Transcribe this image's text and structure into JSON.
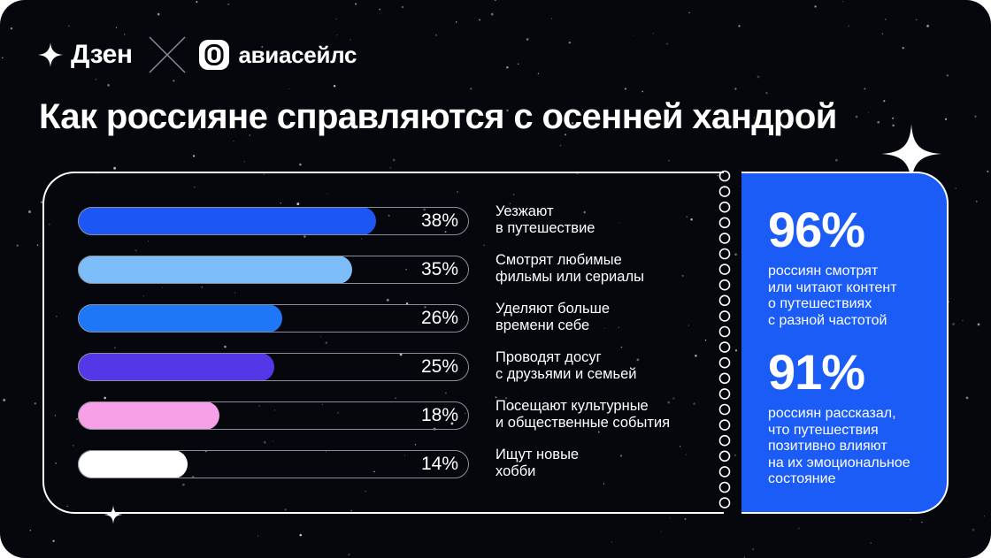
{
  "brand": {
    "dzen": "Дзен",
    "aviasales": "авиасейлс"
  },
  "title": "Как россияне справляются с осенней хандрой",
  "chart_data": {
    "type": "bar",
    "orientation": "horizontal",
    "title": "Как россияне справляются с осенней хандрой",
    "unit": "%",
    "xlim": [
      0,
      100
    ],
    "grid": false,
    "categories": [
      "Уезжают в путешествие",
      "Смотрят любимые фильмы или сериалы",
      "Уделяют больше времени себе",
      "Проводят досуг с друзьями и семьей",
      "Посещают культурные и общественные события",
      "Ищут новые хобби"
    ],
    "values": [
      38,
      35,
      26,
      25,
      18,
      14
    ],
    "bars": [
      {
        "pct": "38%",
        "label_lines": [
          "Уезжают",
          "в путешествие"
        ],
        "color": "#1c57f5"
      },
      {
        "pct": "35%",
        "label_lines": [
          "Смотрят любимые",
          "фильмы или сериалы"
        ],
        "color": "#7cbdfa"
      },
      {
        "pct": "26%",
        "label_lines": [
          "Уделяют больше",
          "времени себе"
        ],
        "color": "#1e77f7"
      },
      {
        "pct": "25%",
        "label_lines": [
          "Проводят досуг",
          "с друзьями и семьей"
        ],
        "color": "#5438e8"
      },
      {
        "pct": "18%",
        "label_lines": [
          "Посещают культурные",
          "и общественные события"
        ],
        "color": "#f7a0e8"
      },
      {
        "pct": "14%",
        "label_lines": [
          "Ищут новые",
          "хобби"
        ],
        "color": "#ffffff"
      }
    ]
  },
  "stats": [
    {
      "value": "96%",
      "text_lines": [
        "россиян смотрят",
        "или читают контент",
        "о путешествиях",
        "с разной частотой"
      ]
    },
    {
      "value": "91%",
      "text_lines": [
        "россиян рассказал,",
        "что путешествия",
        "позитивно влияют",
        "на их эмоциональное",
        "состояние"
      ]
    }
  ],
  "colors": {
    "background": "#05070c",
    "accent_panel": "#1a5cf5",
    "text": "#ffffff"
  }
}
